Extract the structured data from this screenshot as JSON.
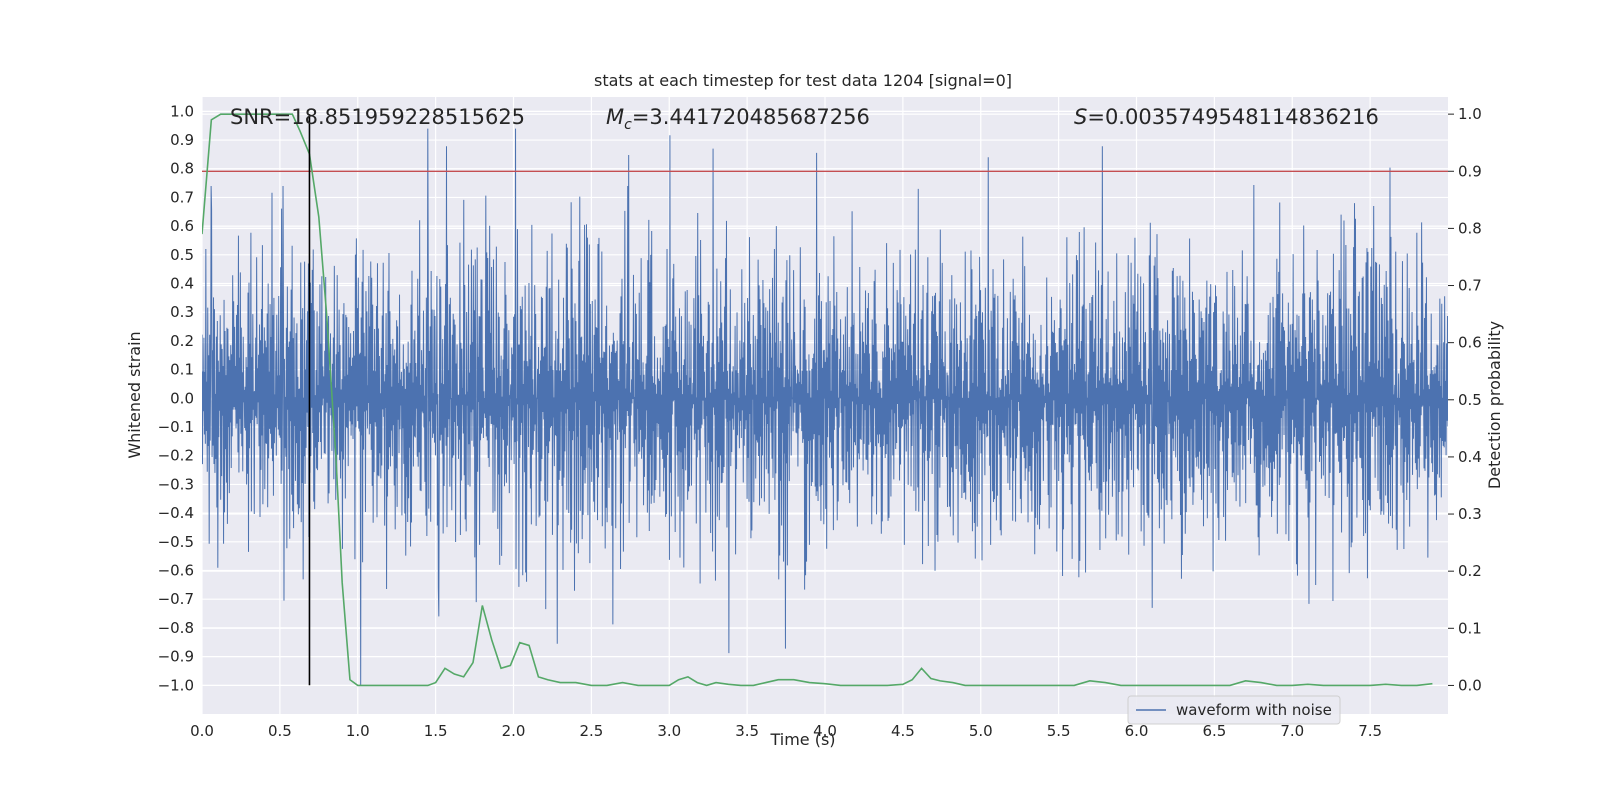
{
  "chart_data": {
    "type": "line",
    "title": "stats at each timestep for test data 1204 [signal=0]",
    "xlabel": "Time (s)",
    "ylabel_left": "Whitened strain",
    "ylabel_right": "Detection probability",
    "xlim": [
      0,
      8.0
    ],
    "ylim_left": [
      -1.1,
      1.05
    ],
    "ylim_right": [
      -0.05,
      1.03
    ],
    "xticks": [
      "0.0",
      "0.5",
      "1.0",
      "1.5",
      "2.0",
      "2.5",
      "3.0",
      "3.5",
      "4.0",
      "4.5",
      "5.0",
      "5.5",
      "6.0",
      "6.5",
      "7.0",
      "7.5"
    ],
    "yticks_left": [
      "1.0",
      "0.9",
      "0.8",
      "0.7",
      "0.6",
      "0.5",
      "0.4",
      "0.3",
      "0.2",
      "0.1",
      "0.0",
      "-0.1",
      "-0.2",
      "-0.3",
      "-0.4",
      "-0.5",
      "-0.6",
      "-0.7",
      "-0.8",
      "-0.9",
      "-1.0"
    ],
    "yticks_right": [
      "1.0",
      "0.9",
      "0.8",
      "0.7",
      "0.6",
      "0.5",
      "0.4",
      "0.3",
      "0.2",
      "0.1",
      "0.0"
    ],
    "grid": true,
    "annotations": {
      "snr": "SNR=18.851959228515625",
      "mc_symbol": "M",
      "mc_sub": "c",
      "mc_value": "=3.441720485687256",
      "s_symbol": "S",
      "s_value": "=0.0035749548114836216"
    },
    "threshold_probability": 0.9,
    "vertical_line_time": 0.69,
    "legend": {
      "label": "waveform with noise",
      "position": "lower-right"
    },
    "series": [
      {
        "name": "waveform with noise",
        "axis": "left",
        "color": "#4c72b0",
        "envelope": {
          "typical_abs": 0.35,
          "spike_max": 0.94,
          "spike_min": -1.0,
          "duration": 8.0
        },
        "notable_spikes": [
          [
            1.45,
            0.94
          ],
          [
            3.28,
            0.87
          ],
          [
            1.02,
            -1.0
          ],
          [
            0.06,
            0.74
          ],
          [
            4.6,
            0.73
          ],
          [
            7.4,
            0.68
          ],
          [
            0.52,
            0.74
          ],
          [
            1.76,
            -0.71
          ],
          [
            6.1,
            -0.73
          ],
          [
            1.52,
            -0.76
          ]
        ]
      },
      {
        "axis": "right",
        "color": "#55a868",
        "x": [
          0.0,
          0.06,
          0.12,
          0.2,
          0.3,
          0.4,
          0.5,
          0.58,
          0.63,
          0.69,
          0.75,
          0.8,
          0.86,
          0.9,
          0.95,
          1.0,
          1.05,
          1.15,
          1.3,
          1.45,
          1.5,
          1.56,
          1.62,
          1.68,
          1.74,
          1.8,
          1.86,
          1.92,
          1.98,
          2.04,
          2.1,
          2.16,
          2.22,
          2.3,
          2.4,
          2.5,
          2.6,
          2.7,
          2.8,
          2.9,
          3.0,
          3.06,
          3.12,
          3.18,
          3.24,
          3.3,
          3.38,
          3.46,
          3.54,
          3.62,
          3.7,
          3.8,
          3.9,
          4.0,
          4.1,
          4.2,
          4.3,
          4.4,
          4.5,
          4.56,
          4.62,
          4.68,
          4.74,
          4.82,
          4.9,
          5.0,
          5.1,
          5.2,
          5.3,
          5.4,
          5.5,
          5.6,
          5.7,
          5.8,
          5.9,
          6.0,
          6.1,
          6.2,
          6.3,
          6.4,
          6.5,
          6.6,
          6.7,
          6.8,
          6.9,
          7.0,
          7.1,
          7.2,
          7.3,
          7.4,
          7.5,
          7.6,
          7.7,
          7.8,
          7.9
        ],
        "values": [
          0.79,
          0.99,
          1.0,
          1.0,
          1.0,
          1.0,
          1.0,
          1.0,
          0.97,
          0.93,
          0.82,
          0.65,
          0.4,
          0.18,
          0.01,
          0.0,
          0.0,
          0.0,
          0.0,
          0.0,
          0.005,
          0.03,
          0.02,
          0.015,
          0.04,
          0.14,
          0.08,
          0.03,
          0.035,
          0.075,
          0.07,
          0.015,
          0.01,
          0.005,
          0.005,
          0.0,
          0.0,
          0.005,
          0.0,
          0.0,
          0.0,
          0.01,
          0.015,
          0.005,
          0.0,
          0.005,
          0.002,
          0.0,
          0.0,
          0.005,
          0.01,
          0.01,
          0.005,
          0.003,
          0.0,
          0.0,
          0.0,
          0.0,
          0.002,
          0.01,
          0.03,
          0.012,
          0.008,
          0.005,
          0.0,
          0.0,
          0.0,
          0.0,
          0.0,
          0.0,
          0.0,
          0.0,
          0.008,
          0.005,
          0.0,
          0.0,
          0.0,
          0.0,
          0.0,
          0.0,
          0.0,
          0.0,
          0.008,
          0.005,
          0.0,
          0.0,
          0.002,
          0.0,
          0.0,
          0.0,
          0.0,
          0.002,
          0.0,
          0.0,
          0.003
        ]
      }
    ],
    "threshold_color": "#c44e52",
    "vertical_line_color": "#000000",
    "background": "#eaeaf2"
  }
}
